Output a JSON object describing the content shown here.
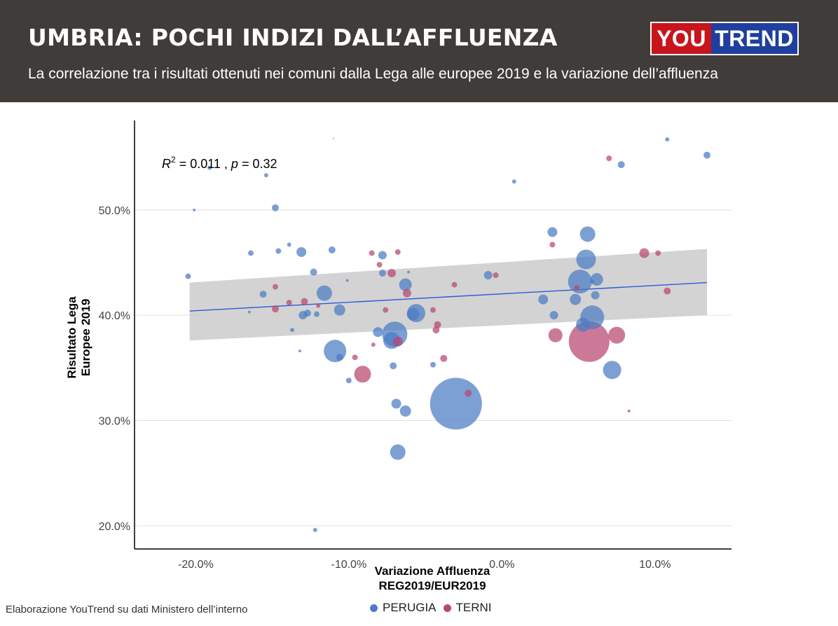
{
  "header": {
    "title": "UMBRIA: POCHI INDIZI DALL’AFFLUENZA",
    "subtitle": "La correlazione tra i risultati ottenuti nei comuni dalla Lega alle europee 2019 e la variazione dell’affluenza",
    "logo_left": "YOU",
    "logo_right": "TREND",
    "colors": {
      "background": "#403c39",
      "logo_red": "#c8141c",
      "logo_blue": "#1f3f9e"
    }
  },
  "footer": {
    "source": "Elaborazione YouTrend su dati Ministero dell’interno"
  },
  "chart_data": {
    "type": "scatter",
    "annotation": {
      "r2": "0.011",
      "p": "0.32"
    },
    "xlabel_line1": "Variazione Affluenza",
    "xlabel_line2": "REG2019/EUR2019",
    "ylabel_line1": "Risultato Lega",
    "ylabel_line2": "Europee 2019",
    "xlim": [
      -24,
      15
    ],
    "ylim": [
      17.8,
      58.5
    ],
    "x_ticks": [
      -20,
      -10,
      0,
      10
    ],
    "x_tick_labels": [
      "-20.0%",
      "-10.0%",
      "0.0%",
      "10.0%"
    ],
    "y_ticks": [
      20,
      30,
      40,
      50
    ],
    "y_tick_labels": [
      "20.0%",
      "30.0%",
      "40.0%",
      "50.0%"
    ],
    "grid": "horizontal",
    "legend_position": "bottom",
    "colors": {
      "PERUGIA": "#4a7bc4",
      "TERNI": "#b8456f",
      "trend": "#2a5bd7",
      "band": "#c8c8c8"
    },
    "trend": {
      "x": [
        -20.4,
        13.4
      ],
      "y": [
        40.4,
        43.1
      ],
      "band_lower": [
        37.6,
        40.0
      ],
      "band_upper": [
        43.1,
        46.3
      ]
    },
    "series": [
      {
        "name": "PERUGIA",
        "points": [
          {
            "x": -20.5,
            "y": 43.7,
            "r": 4
          },
          {
            "x": -19.1,
            "y": 54.0,
            "r": 3
          },
          {
            "x": -20.1,
            "y": 50.0,
            "r": 2
          },
          {
            "x": -15.4,
            "y": 53.3,
            "r": 3
          },
          {
            "x": -14.8,
            "y": 50.2,
            "r": 5
          },
          {
            "x": -16.4,
            "y": 45.9,
            "r": 4
          },
          {
            "x": -14.6,
            "y": 46.1,
            "r": 4
          },
          {
            "x": -13.9,
            "y": 46.7,
            "r": 3
          },
          {
            "x": -13.1,
            "y": 46.0,
            "r": 7
          },
          {
            "x": -12.3,
            "y": 44.1,
            "r": 5
          },
          {
            "x": -11.1,
            "y": 46.2,
            "r": 5
          },
          {
            "x": -11.6,
            "y": 42.1,
            "r": 11
          },
          {
            "x": -15.6,
            "y": 42.0,
            "r": 5
          },
          {
            "x": -10.1,
            "y": 43.3,
            "r": 2
          },
          {
            "x": -16.5,
            "y": 40.3,
            "r": 2
          },
          {
            "x": -12.7,
            "y": 40.2,
            "r": 5
          },
          {
            "x": -13.0,
            "y": 40.0,
            "r": 6
          },
          {
            "x": -12.1,
            "y": 40.1,
            "r": 4
          },
          {
            "x": -10.6,
            "y": 40.5,
            "r": 8
          },
          {
            "x": -13.7,
            "y": 38.6,
            "r": 3
          },
          {
            "x": -13.2,
            "y": 36.6,
            "r": 2
          },
          {
            "x": -10.9,
            "y": 36.6,
            "r": 16
          },
          {
            "x": -10.6,
            "y": 36.0,
            "r": 5
          },
          {
            "x": -10.0,
            "y": 33.8,
            "r": 4
          },
          {
            "x": -12.2,
            "y": 19.6,
            "r": 3
          },
          {
            "x": -11.0,
            "y": 56.8,
            "r": 1
          },
          {
            "x": -7.8,
            "y": 45.7,
            "r": 6
          },
          {
            "x": -7.8,
            "y": 44.0,
            "r": 5
          },
          {
            "x": -6.1,
            "y": 44.1,
            "r": 2
          },
          {
            "x": -6.3,
            "y": 42.9,
            "r": 9
          },
          {
            "x": -5.6,
            "y": 40.2,
            "r": 13
          },
          {
            "x": -5.8,
            "y": 40.1,
            "r": 9
          },
          {
            "x": -7.0,
            "y": 38.2,
            "r": 18
          },
          {
            "x": -7.2,
            "y": 37.6,
            "r": 12
          },
          {
            "x": -8.1,
            "y": 38.4,
            "r": 7
          },
          {
            "x": -7.1,
            "y": 35.2,
            "r": 5
          },
          {
            "x": -4.5,
            "y": 35.3,
            "r": 4
          },
          {
            "x": -6.9,
            "y": 31.6,
            "r": 7
          },
          {
            "x": -6.3,
            "y": 30.9,
            "r": 8
          },
          {
            "x": -3.0,
            "y": 31.6,
            "r": 37
          },
          {
            "x": -6.8,
            "y": 27.0,
            "r": 11
          },
          {
            "x": -0.9,
            "y": 43.8,
            "r": 6
          },
          {
            "x": 0.8,
            "y": 52.7,
            "r": 3
          },
          {
            "x": 3.3,
            "y": 47.9,
            "r": 7
          },
          {
            "x": 5.6,
            "y": 47.7,
            "r": 11
          },
          {
            "x": 5.5,
            "y": 45.3,
            "r": 14
          },
          {
            "x": 5.1,
            "y": 43.2,
            "r": 17
          },
          {
            "x": 6.2,
            "y": 43.4,
            "r": 9
          },
          {
            "x": 5.9,
            "y": 43.2,
            "r": 3
          },
          {
            "x": 2.7,
            "y": 41.5,
            "r": 7
          },
          {
            "x": 4.8,
            "y": 41.5,
            "r": 8
          },
          {
            "x": 6.1,
            "y": 41.9,
            "r": 6
          },
          {
            "x": 3.4,
            "y": 40.0,
            "r": 6
          },
          {
            "x": 5.9,
            "y": 39.8,
            "r": 17
          },
          {
            "x": 5.3,
            "y": 39.1,
            "r": 10
          },
          {
            "x": 7.2,
            "y": 34.8,
            "r": 13
          },
          {
            "x": 7.8,
            "y": 54.3,
            "r": 5
          },
          {
            "x": 10.8,
            "y": 56.7,
            "r": 3
          },
          {
            "x": 13.4,
            "y": 55.2,
            "r": 5
          }
        ]
      },
      {
        "name": "TERNI",
        "points": [
          {
            "x": -14.8,
            "y": 42.7,
            "r": 4
          },
          {
            "x": -13.9,
            "y": 41.2,
            "r": 4
          },
          {
            "x": -12.9,
            "y": 41.3,
            "r": 5
          },
          {
            "x": -14.8,
            "y": 40.6,
            "r": 5
          },
          {
            "x": -12.0,
            "y": 40.9,
            "r": 3
          },
          {
            "x": -8.5,
            "y": 45.9,
            "r": 4
          },
          {
            "x": -6.8,
            "y": 46.0,
            "r": 4
          },
          {
            "x": -8.0,
            "y": 44.8,
            "r": 4
          },
          {
            "x": -7.2,
            "y": 44.0,
            "r": 6
          },
          {
            "x": -6.2,
            "y": 42.1,
            "r": 6
          },
          {
            "x": -7.6,
            "y": 40.5,
            "r": 4
          },
          {
            "x": -4.5,
            "y": 40.5,
            "r": 4
          },
          {
            "x": -4.2,
            "y": 39.1,
            "r": 5
          },
          {
            "x": -4.3,
            "y": 38.6,
            "r": 5
          },
          {
            "x": -6.8,
            "y": 37.5,
            "r": 7
          },
          {
            "x": -8.4,
            "y": 37.2,
            "r": 3
          },
          {
            "x": -9.6,
            "y": 36.0,
            "r": 4
          },
          {
            "x": -3.8,
            "y": 35.9,
            "r": 5
          },
          {
            "x": -9.1,
            "y": 34.4,
            "r": 12
          },
          {
            "x": -2.2,
            "y": 32.6,
            "r": 5
          },
          {
            "x": -3.1,
            "y": 42.9,
            "r": 4
          },
          {
            "x": -0.4,
            "y": 43.8,
            "r": 4
          },
          {
            "x": 3.3,
            "y": 46.7,
            "r": 4
          },
          {
            "x": 4.9,
            "y": 42.6,
            "r": 4
          },
          {
            "x": 3.5,
            "y": 38.1,
            "r": 10
          },
          {
            "x": 5.7,
            "y": 37.5,
            "r": 29
          },
          {
            "x": 7.5,
            "y": 38.1,
            "r": 12
          },
          {
            "x": 7.0,
            "y": 54.9,
            "r": 4
          },
          {
            "x": 9.3,
            "y": 45.9,
            "r": 7
          },
          {
            "x": 10.2,
            "y": 45.9,
            "r": 4
          },
          {
            "x": 10.8,
            "y": 42.3,
            "r": 5
          },
          {
            "x": 8.3,
            "y": 30.9,
            "r": 2
          }
        ]
      }
    ]
  }
}
